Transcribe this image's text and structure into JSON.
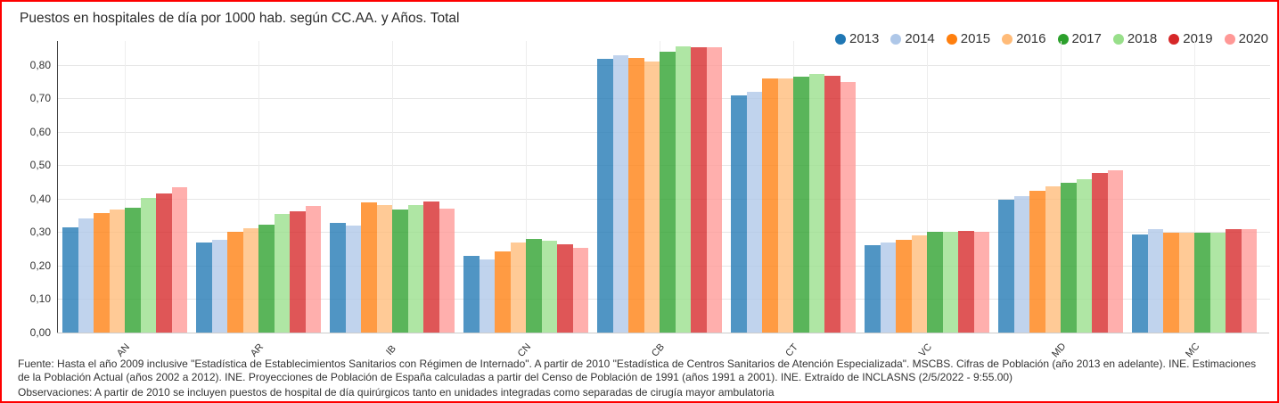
{
  "frame": {
    "border_color": "#fe0000",
    "background": "#ffffff"
  },
  "chart_data": {
    "type": "bar",
    "title": "Puestos en hospitales de día por 1000 hab. según CC.AA. y Años. Total",
    "xlabel": "",
    "ylabel": "",
    "categories": [
      "AN",
      "AR",
      "IB",
      "CN",
      "CB",
      "CT",
      "VC",
      "MD",
      "MC"
    ],
    "series": [
      {
        "name": "2013",
        "color": "#1f77b4",
        "values": [
          0.315,
          0.27,
          0.327,
          0.23,
          0.818,
          0.71,
          0.26,
          0.397,
          0.293
        ]
      },
      {
        "name": "2014",
        "color": "#aec7e8",
        "values": [
          0.34,
          0.278,
          0.319,
          0.219,
          0.828,
          0.72,
          0.269,
          0.407,
          0.308
        ]
      },
      {
        "name": "2015",
        "color": "#ff7f0e",
        "values": [
          0.357,
          0.302,
          0.389,
          0.243,
          0.822,
          0.76,
          0.278,
          0.423,
          0.298
        ]
      },
      {
        "name": "2016",
        "color": "#ffbb78",
        "values": [
          0.369,
          0.312,
          0.38,
          0.269,
          0.81,
          0.76,
          0.29,
          0.437,
          0.298
        ]
      },
      {
        "name": "2017",
        "color": "#2ca02c",
        "values": [
          0.374,
          0.323,
          0.367,
          0.279,
          0.84,
          0.764,
          0.301,
          0.449,
          0.298
        ]
      },
      {
        "name": "2018",
        "color": "#98df8a",
        "values": [
          0.403,
          0.354,
          0.38,
          0.275,
          0.855,
          0.773,
          0.301,
          0.459,
          0.298
        ]
      },
      {
        "name": "2019",
        "color": "#d62728",
        "values": [
          0.416,
          0.363,
          0.393,
          0.263,
          0.852,
          0.767,
          0.303,
          0.478,
          0.308
        ]
      },
      {
        "name": "2020",
        "color": "#ff9896",
        "values": [
          0.434,
          0.378,
          0.37,
          0.253,
          0.852,
          0.749,
          0.3,
          0.485,
          0.308
        ]
      }
    ],
    "ylim": [
      0,
      0.872
    ],
    "ytick_labels": [
      {
        "value": 0.0,
        "label": "0,00"
      },
      {
        "value": 0.1,
        "label": "0,10"
      },
      {
        "value": 0.2,
        "label": "0,20"
      },
      {
        "value": 0.3,
        "label": "0,30"
      },
      {
        "value": 0.4,
        "label": "0,40"
      },
      {
        "value": 0.5,
        "label": "0,50"
      },
      {
        "value": 0.6,
        "label": "0,60"
      },
      {
        "value": 0.7,
        "label": "0,70"
      },
      {
        "value": 0.8,
        "label": "0,80"
      }
    ],
    "grid": true,
    "legend_position": "top-right"
  },
  "footer": {
    "fuente": "Fuente: Hasta el año 2009 inclusive \"Estadística de Establecimientos Sanitarios con Régimen de Internado\". A partir de 2010 \"Estadística de Centros Sanitarios de Atención Especializada\". MSCBS. Cifras de Población (año 2013 en adelante). INE. Estimaciones de la Población Actual (años 2002 a 2012). INE. Proyecciones de Población de España calculadas a partir del Censo de Población de 1991 (años 1991 a 2001). INE. Extraído de INCLASNS (2/5/2022 - 9:55.00)",
    "observaciones": "Observaciones: A partir de 2010 se incluyen puestos de hospital de día quirúrgicos tanto en unidades integradas como separadas de cirugía mayor ambulatoria"
  }
}
